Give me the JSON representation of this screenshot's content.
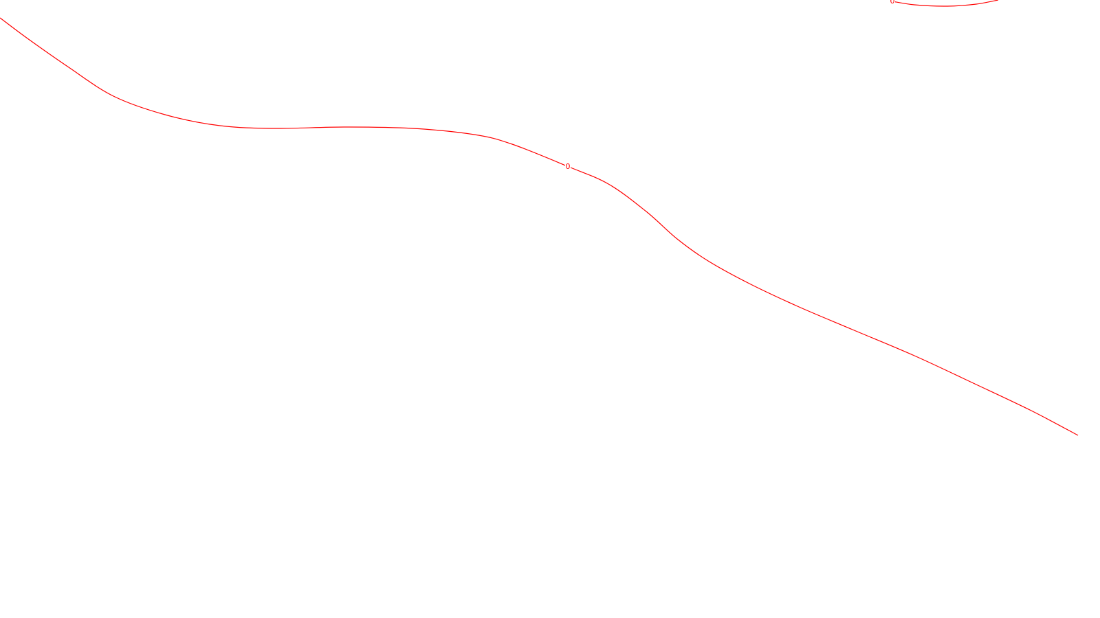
{
  "chart_data": {
    "type": "line",
    "style": "contour",
    "title": "",
    "xlabel": "",
    "ylabel": "",
    "grid": false,
    "legend": "none",
    "line_color": "#ff0000",
    "background": "#ffffff",
    "series": [
      {
        "level_label": "0",
        "points": [
          [
            0,
            26
          ],
          [
            40,
            56
          ],
          [
            100,
            98
          ],
          [
            165,
            140
          ],
          [
            240,
            167
          ],
          [
            320,
            183
          ],
          [
            400,
            187
          ],
          [
            500,
            185
          ],
          [
            600,
            187
          ],
          [
            690,
            196
          ],
          [
            745,
            210
          ],
          [
            825,
            242
          ],
          [
            885,
            268
          ],
          [
            940,
            308
          ],
          [
            985,
            348
          ],
          [
            1030,
            380
          ],
          [
            1090,
            413
          ],
          [
            1160,
            446
          ],
          [
            1240,
            480
          ],
          [
            1330,
            518
          ],
          [
            1420,
            560
          ],
          [
            1500,
            598
          ],
          [
            1568,
            634
          ]
        ]
      },
      {
        "level_label": "0",
        "points": [
          [
            1298,
            2
          ],
          [
            1330,
            7
          ],
          [
            1378,
            9
          ],
          [
            1420,
            6
          ],
          [
            1452,
            0
          ]
        ]
      }
    ],
    "labels": [
      {
        "text": "0",
        "series": 0,
        "at": [
          826,
          242
        ]
      },
      {
        "text": "0",
        "series": 1,
        "at": [
          1298,
          1
        ]
      }
    ]
  }
}
